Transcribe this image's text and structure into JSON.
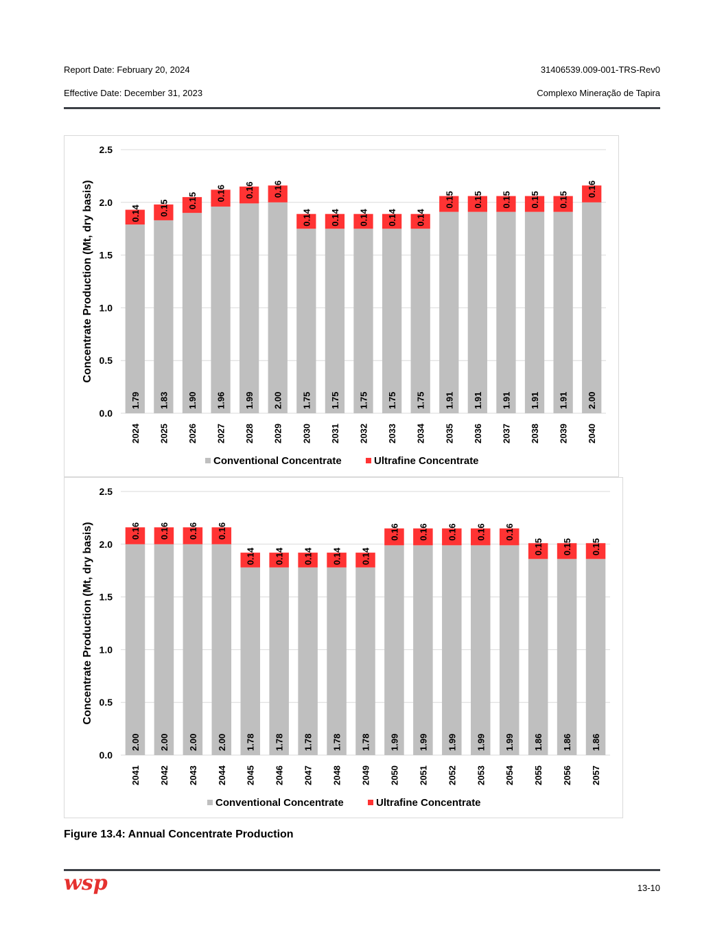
{
  "header": {
    "report_date": "Report Date: February 20, 2024",
    "effective_date": "Effective Date: December 31, 2023",
    "doc_id": "31406539.009-001-TRS-Rev0",
    "project": "Complexo Mineração de Tapira"
  },
  "caption": "Figure 13.4: Annual Concentrate Production",
  "footer": {
    "page_number": "13-10",
    "logo_text": "wsp"
  },
  "colors": {
    "conventional": "#bfbfbf",
    "ultrafine": "#ff3333",
    "gridline": "#d9d9d9",
    "rule": "#3c4046",
    "logo": "#e5312f"
  },
  "chart_data": [
    {
      "type": "bar",
      "stacked": true,
      "ylabel": "Concentrate Production (Mt, dry basis)",
      "ylim": [
        0,
        2.5
      ],
      "yticks": [
        "0.0",
        "0.5",
        "1.0",
        "1.5",
        "2.0",
        "2.5"
      ],
      "categories": [
        "2024",
        "2025",
        "2026",
        "2027",
        "2028",
        "2029",
        "2030",
        "2031",
        "2032",
        "2033",
        "2034",
        "2035",
        "2036",
        "2037",
        "2038",
        "2039",
        "2040"
      ],
      "series": [
        {
          "name": "Conventional Concentrate",
          "values": [
            1.79,
            1.83,
            1.9,
            1.96,
            1.99,
            2.0,
            1.75,
            1.75,
            1.75,
            1.75,
            1.75,
            1.91,
            1.91,
            1.91,
            1.91,
            1.91,
            2.0
          ],
          "labels": [
            "1.79",
            "1.83",
            "1.90",
            "1.96",
            "1.99",
            "2.00",
            "1.75",
            "1.75",
            "1.75",
            "1.75",
            "1.75",
            "1.91",
            "1.91",
            "1.91",
            "1.91",
            "1.91",
            "2.00"
          ]
        },
        {
          "name": "Ultrafine Concentrate",
          "values": [
            0.14,
            0.15,
            0.15,
            0.16,
            0.16,
            0.16,
            0.14,
            0.14,
            0.14,
            0.14,
            0.14,
            0.15,
            0.15,
            0.15,
            0.15,
            0.15,
            0.16
          ],
          "labels": [
            "0.14",
            "0.15",
            "0.15",
            "0.16",
            "0.16",
            "0.16",
            "0.14",
            "0.14",
            "0.14",
            "0.14",
            "0.14",
            "0.15",
            "0.15",
            "0.15",
            "0.15",
            "0.15",
            "0.16"
          ]
        }
      ],
      "legend": "bottom"
    },
    {
      "type": "bar",
      "stacked": true,
      "ylabel": "Concentrate Production (Mt, dry basis)",
      "ylim": [
        0,
        2.5
      ],
      "yticks": [
        "0.0",
        "0.5",
        "1.0",
        "1.5",
        "2.0",
        "2.5"
      ],
      "categories": [
        "2041",
        "2042",
        "2043",
        "2044",
        "2045",
        "2046",
        "2047",
        "2048",
        "2049",
        "2050",
        "2051",
        "2052",
        "2053",
        "2054",
        "2055",
        "2056",
        "2057"
      ],
      "series": [
        {
          "name": "Conventional Concentrate",
          "values": [
            2.0,
            2.0,
            2.0,
            2.0,
            1.78,
            1.78,
            1.78,
            1.78,
            1.78,
            1.99,
            1.99,
            1.99,
            1.99,
            1.99,
            1.86,
            1.86,
            1.86
          ],
          "labels": [
            "2.00",
            "2.00",
            "2.00",
            "2.00",
            "1.78",
            "1.78",
            "1.78",
            "1.78",
            "1.78",
            "1.99",
            "1.99",
            "1.99",
            "1.99",
            "1.99",
            "1.86",
            "1.86",
            "1.86"
          ]
        },
        {
          "name": "Ultrafine Concentrate",
          "values": [
            0.16,
            0.16,
            0.16,
            0.16,
            0.14,
            0.14,
            0.14,
            0.14,
            0.14,
            0.16,
            0.16,
            0.16,
            0.16,
            0.16,
            0.15,
            0.15,
            0.15
          ],
          "labels": [
            "0.16",
            "0.16",
            "0.16",
            "0.16",
            "0.14",
            "0.14",
            "0.14",
            "0.14",
            "0.14",
            "0.16",
            "0.16",
            "0.16",
            "0.16",
            "0.16",
            "0.15",
            "0.15",
            "0.15"
          ]
        }
      ],
      "legend": "bottom"
    }
  ]
}
